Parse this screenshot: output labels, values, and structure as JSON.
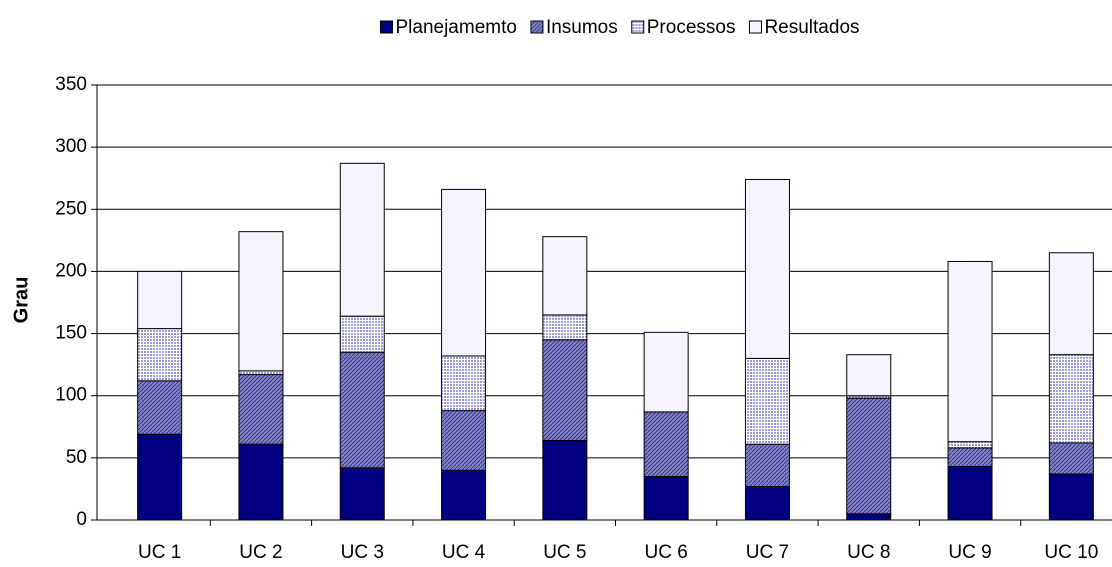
{
  "chart_data": {
    "type": "stacked-bar",
    "y_label": "Grau",
    "categories": [
      "UC 1",
      "UC 2",
      "UC 3",
      "UC 4",
      "UC 5",
      "UC 6",
      "UC 7",
      "UC 8",
      "UC 9",
      "UC 10"
    ],
    "series": [
      {
        "name": "Planejamemto",
        "color": "#000080",
        "values": [
          69,
          61,
          42,
          40,
          64,
          35,
          27,
          5,
          43,
          37
        ]
      },
      {
        "name": "Insumos",
        "color": "#8080c8",
        "values": [
          43,
          56,
          93,
          48,
          81,
          52,
          34,
          93,
          15,
          25
        ]
      },
      {
        "name": "Processos",
        "color": "#9c9cd8",
        "values": [
          42,
          3,
          29,
          44,
          20,
          0,
          69,
          2,
          5,
          71
        ]
      },
      {
        "name": "Resultados",
        "color": "#f4f4ff",
        "values": [
          46,
          112,
          123,
          134,
          63,
          64,
          144,
          33,
          145,
          82
        ]
      }
    ],
    "ylim": [
      0,
      350
    ],
    "yticks": [
      0,
      50,
      100,
      150,
      200,
      250,
      300,
      350
    ],
    "grid": true,
    "legend": "top"
  }
}
